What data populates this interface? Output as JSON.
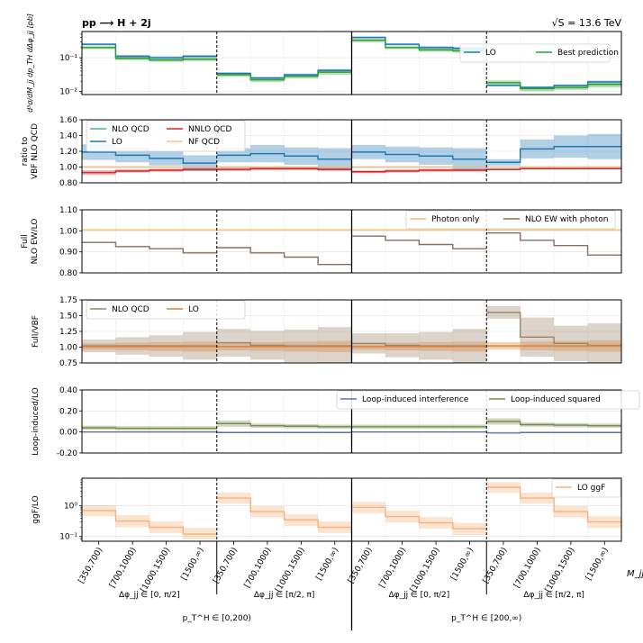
{
  "figure": {
    "process": "pp ⟶ H + 2j",
    "energy": "√S = 13.6 TeV",
    "mjj_label": "M_jj",
    "mjj_bins": [
      "[350,700)",
      "[700,1000)",
      "[1000,1500)",
      "[1500,∞)"
    ],
    "dphi_labels": [
      "Δφ_jj ∈ [0, π/2]",
      "Δφ_jj ∈ [π/2, π]",
      "Δφ_jj ∈ [0, π/2]",
      "Δφ_jj ∈ [π/2, π]"
    ],
    "pt_labels": [
      "p_T^H ∈ [0,200)",
      "p_T^H ∈ [200,∞)"
    ]
  },
  "chart_data": [
    {
      "type": "line",
      "step": true,
      "panel": "cross-section",
      "ylabel": "d³σ/dM_jj dp_TH dΔφ_jj [pb]",
      "yscale": "log",
      "ylim": [
        0.008,
        0.6
      ],
      "yticks": [
        0.01,
        0.1
      ],
      "ytick_labels": [
        "10⁻²",
        "10⁻¹"
      ],
      "legend": "right",
      "series": [
        {
          "name": "LO",
          "color": "#1f77b4",
          "values": [
            0.25,
            0.11,
            0.1,
            0.11,
            0.034,
            0.025,
            0.031,
            0.042,
            0.4,
            0.25,
            0.2,
            0.19,
            0.015,
            0.013,
            0.015,
            0.019
          ],
          "band_lo": [
            0.23,
            0.1,
            0.09,
            0.1,
            0.031,
            0.023,
            0.028,
            0.038,
            0.37,
            0.23,
            0.18,
            0.17,
            0.014,
            0.012,
            0.014,
            0.017
          ],
          "band_hi": [
            0.27,
            0.12,
            0.11,
            0.12,
            0.037,
            0.027,
            0.034,
            0.046,
            0.43,
            0.27,
            0.22,
            0.21,
            0.016,
            0.014,
            0.016,
            0.021
          ]
        },
        {
          "name": "Best prediction",
          "color": "#2ca02c",
          "values": [
            0.2,
            0.095,
            0.085,
            0.09,
            0.031,
            0.022,
            0.028,
            0.037,
            0.33,
            0.2,
            0.17,
            0.16,
            0.018,
            0.012,
            0.013,
            0.016
          ],
          "band_lo": [
            0.18,
            0.085,
            0.075,
            0.08,
            0.027,
            0.019,
            0.024,
            0.031,
            0.29,
            0.18,
            0.15,
            0.14,
            0.015,
            0.01,
            0.011,
            0.013
          ],
          "band_hi": [
            0.22,
            0.105,
            0.095,
            0.1,
            0.035,
            0.025,
            0.032,
            0.043,
            0.37,
            0.22,
            0.19,
            0.18,
            0.021,
            0.014,
            0.015,
            0.019
          ]
        }
      ]
    },
    {
      "type": "line",
      "step": true,
      "panel": "ratio-to-vbf",
      "ylabel": "ratio to VBF NLO QCD",
      "ylim": [
        0.8,
        1.6
      ],
      "yticks": [
        0.8,
        1.0,
        1.2,
        1.4,
        1.6
      ],
      "ytick_labels": [
        "0.80",
        "1.00",
        "1.20",
        "1.40",
        "1.60"
      ],
      "legend": "top-left",
      "series": [
        {
          "name": "NLO QCD",
          "color": "#5fa8a6",
          "values": [
            1,
            1,
            1,
            1,
            1,
            1,
            1,
            1,
            1,
            1,
            1,
            1,
            1,
            1,
            1,
            1
          ]
        },
        {
          "name": "NNLO QCD",
          "color": "#d62728",
          "values": [
            0.93,
            0.95,
            0.96,
            0.97,
            0.97,
            0.98,
            0.98,
            0.97,
            0.94,
            0.95,
            0.96,
            0.96,
            0.97,
            0.98,
            0.98,
            0.98
          ],
          "band_lo": [
            0.9,
            0.93,
            0.94,
            0.95,
            0.95,
            0.96,
            0.96,
            0.95,
            0.92,
            0.93,
            0.94,
            0.94,
            0.96,
            0.97,
            0.97,
            0.97
          ],
          "band_hi": [
            0.96,
            0.97,
            0.98,
            0.99,
            0.99,
            1.0,
            1.0,
            0.99,
            0.96,
            0.97,
            0.98,
            0.98,
            0.98,
            0.99,
            0.99,
            0.99
          ]
        },
        {
          "name": "LO",
          "color": "#1f77b4",
          "values": [
            1.19,
            1.15,
            1.11,
            1.05,
            1.15,
            1.17,
            1.14,
            1.1,
            1.19,
            1.16,
            1.14,
            1.1,
            1.06,
            1.23,
            1.26,
            1.26
          ],
          "band_lo": [
            1.09,
            1.06,
            1.02,
            0.95,
            1.06,
            1.06,
            1.03,
            0.96,
            1.1,
            1.06,
            1.03,
            0.96,
            1.02,
            1.11,
            1.12,
            1.1
          ],
          "band_hi": [
            1.29,
            1.24,
            1.2,
            1.15,
            1.24,
            1.28,
            1.25,
            1.24,
            1.28,
            1.26,
            1.25,
            1.24,
            1.1,
            1.35,
            1.4,
            1.42
          ]
        },
        {
          "name": "NF QCD",
          "color": "#f5c28f",
          "values": [
            1.0,
            1.0,
            1.0,
            1.0,
            1.0,
            1.0,
            1.0,
            1.0,
            1.0,
            1.0,
            1.0,
            1.0,
            1.0,
            1.0,
            1.0,
            1.0
          ]
        }
      ]
    },
    {
      "type": "line",
      "step": true,
      "panel": "ew-ratio",
      "ylabel": "Full NLO EW/LO",
      "ylim": [
        0.8,
        1.1
      ],
      "yticks": [
        0.8,
        0.9,
        1.0,
        1.1
      ],
      "ytick_labels": [
        "0.80",
        "0.90",
        "1.00",
        "1.10"
      ],
      "legend": "top-right",
      "series": [
        {
          "name": "Photon only",
          "color": "#f0c070",
          "values": [
            1.005,
            1.005,
            1.005,
            1.005,
            1.005,
            1.005,
            1.005,
            1.005,
            1.005,
            1.005,
            1.005,
            1.005,
            1.005,
            1.005,
            1.005,
            1.005
          ]
        },
        {
          "name": "NLO EW with photon",
          "color": "#8c6d62",
          "values": [
            0.945,
            0.925,
            0.915,
            0.895,
            0.92,
            0.895,
            0.875,
            0.84,
            0.975,
            0.955,
            0.935,
            0.915,
            0.99,
            0.955,
            0.93,
            0.885
          ]
        }
      ]
    },
    {
      "type": "line",
      "step": true,
      "panel": "full-vbf",
      "ylabel": "Full/VBF",
      "ylim": [
        0.75,
        1.75
      ],
      "yticks": [
        0.75,
        1.0,
        1.25,
        1.5,
        1.75
      ],
      "ytick_labels": [
        "0.75",
        "1.00",
        "1.25",
        "1.50",
        "1.75"
      ],
      "legend": "top-left",
      "series": [
        {
          "name": "NLO QCD",
          "color": "#9c8468",
          "values": [
            1.02,
            1.02,
            1.02,
            1.02,
            1.07,
            1.03,
            1.02,
            1.02,
            1.06,
            1.03,
            1.02,
            1.02,
            1.55,
            1.16,
            1.06,
            1.03
          ],
          "band_lo": [
            0.92,
            0.88,
            0.85,
            0.8,
            0.85,
            0.8,
            0.76,
            0.72,
            0.9,
            0.84,
            0.8,
            0.75,
            1.45,
            0.85,
            0.78,
            0.73
          ],
          "band_hi": [
            1.12,
            1.16,
            1.19,
            1.24,
            1.29,
            1.26,
            1.28,
            1.32,
            1.22,
            1.22,
            1.24,
            1.29,
            1.65,
            1.47,
            1.34,
            1.38
          ]
        },
        {
          "name": "LO",
          "color": "#d9823b",
          "values": [
            1.01,
            1.01,
            1.01,
            1.01,
            1.01,
            1.01,
            1.01,
            1.01,
            1.01,
            1.01,
            1.01,
            1.01,
            1.02,
            1.02,
            1.02,
            1.02
          ],
          "band_lo": [
            0.96,
            0.95,
            0.94,
            0.93,
            0.95,
            0.94,
            0.93,
            0.92,
            0.96,
            0.95,
            0.94,
            0.93,
            0.96,
            0.95,
            0.94,
            0.93
          ],
          "band_hi": [
            1.06,
            1.07,
            1.08,
            1.09,
            1.07,
            1.08,
            1.09,
            1.1,
            1.06,
            1.07,
            1.08,
            1.09,
            1.08,
            1.09,
            1.1,
            1.11
          ]
        }
      ]
    },
    {
      "type": "line",
      "step": true,
      "panel": "loop-induced",
      "ylabel": "Loop-induced/LO",
      "ylim": [
        -0.2,
        0.4
      ],
      "yticks": [
        -0.2,
        0.0,
        0.2,
        0.4
      ],
      "ytick_labels": [
        "-0.20",
        "0.00",
        "0.20",
        "0.40"
      ],
      "legend": "top-right",
      "series": [
        {
          "name": "Loop-induced interference",
          "color": "#5b73ad",
          "values": [
            0.0,
            0.0,
            0.0,
            0.0,
            -0.005,
            -0.005,
            -0.005,
            -0.005,
            0.0,
            0.0,
            0.0,
            0.0,
            -0.01,
            -0.005,
            -0.005,
            -0.005
          ]
        },
        {
          "name": "Loop-induced squared",
          "color": "#7a8a4a",
          "values": [
            0.04,
            0.035,
            0.035,
            0.035,
            0.08,
            0.06,
            0.055,
            0.05,
            0.05,
            0.05,
            0.05,
            0.05,
            0.1,
            0.07,
            0.065,
            0.06
          ],
          "band_lo": [
            0.02,
            0.015,
            0.015,
            0.015,
            0.05,
            0.04,
            0.035,
            0.03,
            0.03,
            0.03,
            0.03,
            0.03,
            0.07,
            0.05,
            0.045,
            0.04
          ],
          "band_hi": [
            0.06,
            0.055,
            0.055,
            0.055,
            0.11,
            0.08,
            0.075,
            0.07,
            0.07,
            0.07,
            0.07,
            0.07,
            0.13,
            0.09,
            0.085,
            0.08
          ]
        }
      ]
    },
    {
      "type": "line",
      "step": true,
      "panel": "ggf",
      "ylabel": "ggF/LO",
      "yscale": "log",
      "ylim": [
        0.07,
        8
      ],
      "yticks": [
        0.1,
        1
      ],
      "ytick_labels": [
        "10⁻¹",
        "10⁰"
      ],
      "legend": "top-right",
      "series": [
        {
          "name": "LO ggF",
          "color": "#f5b27a",
          "values": [
            0.7,
            0.32,
            0.2,
            0.12,
            1.8,
            0.65,
            0.35,
            0.2,
            0.9,
            0.45,
            0.28,
            0.18,
            4.0,
            1.8,
            0.65,
            0.3
          ],
          "band_lo": [
            0.45,
            0.2,
            0.13,
            0.08,
            1.2,
            0.42,
            0.22,
            0.13,
            0.58,
            0.29,
            0.18,
            0.11,
            2.7,
            1.2,
            0.42,
            0.19
          ],
          "band_hi": [
            1.05,
            0.5,
            0.31,
            0.19,
            2.7,
            0.98,
            0.54,
            0.31,
            1.35,
            0.7,
            0.43,
            0.28,
            6.0,
            2.7,
            0.98,
            0.46
          ]
        }
      ]
    }
  ]
}
